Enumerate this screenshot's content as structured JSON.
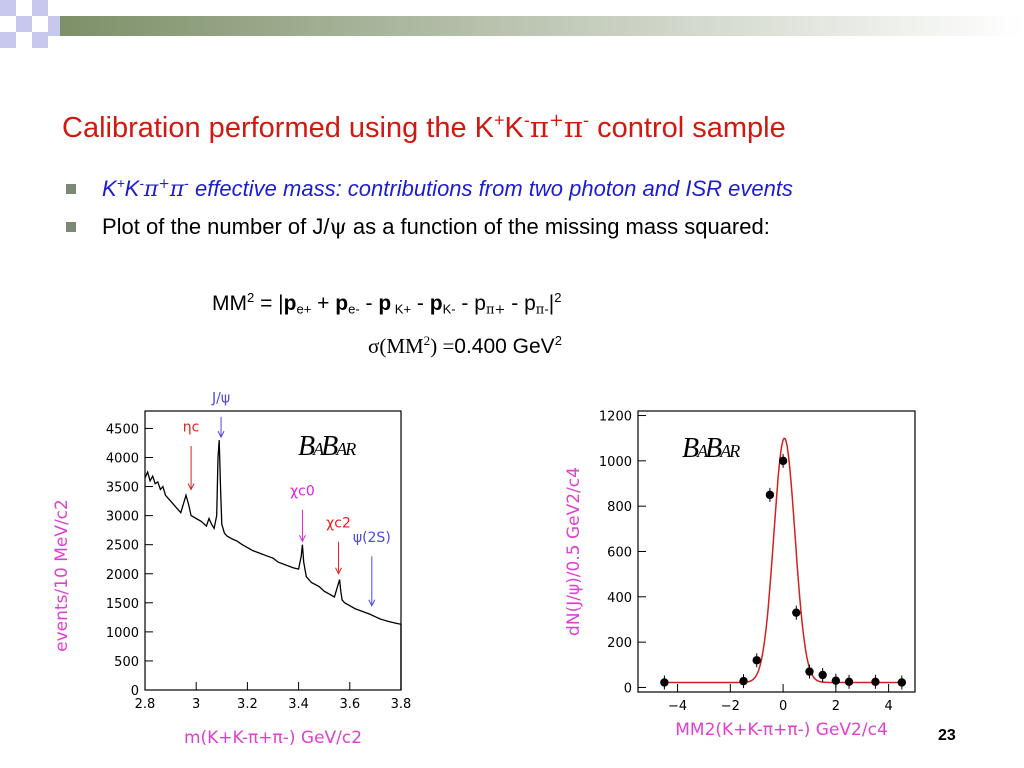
{
  "slide": {
    "title_parts": [
      "Calibration performed using the K",
      "+",
      "K",
      "-",
      "π",
      "+",
      "π",
      "-",
      " control sample"
    ],
    "bullet1": {
      "parts": [
        "K",
        "+",
        "K",
        "-",
        "π",
        "+",
        "π",
        "-"
      ],
      "text": " effective mass: contributions from two photon and ISR events"
    },
    "bullet2": {
      "pre": "Plot of the number of J/",
      "psi": "ψ",
      "post": " as a function of the missing mass squared:"
    },
    "formula1": {
      "lead": "MM",
      "lead_sup": "2",
      "eq": " = |",
      "t1": "p",
      "t1_sub": "e+",
      "op1": " + ",
      "t2": "p",
      "t2_sub": "e-",
      "op2": " - ",
      "t3": "p",
      "t3_sub": " K+",
      "op3": " - ",
      "t4": "p",
      "t4_sub": "K-",
      "op4": " - ",
      "t5": "p",
      "t5_sub": "π+",
      "op5": " - ",
      "t6": "p",
      "t6_sub": "π-",
      "close": "|",
      "close_sup": "2"
    },
    "formula2": {
      "sigma": "σ(MM",
      "sup": "2",
      "paren": ")",
      "eq": " =",
      "value": "0.400 GeV",
      "unit_sup": "2"
    },
    "page_number": "23",
    "colors": {
      "title": "#d0190f",
      "bullet_italic": "#1c1cd0",
      "axis_label": "#e040d0",
      "fit_curve": "#d42020"
    }
  },
  "chart_data": [
    {
      "type": "line",
      "logo": "BABAR",
      "xlabel": "m(K+K-π+π-) GeV/c2",
      "ylabel": "events/10 MeV/c2",
      "xlim": [
        2.8,
        3.8
      ],
      "ylim": [
        0,
        4800
      ],
      "xticks": [
        "2.8",
        "3",
        "3.2",
        "3.4",
        "3.6",
        "3.8"
      ],
      "yticks": [
        "0",
        "500",
        "1000",
        "1500",
        "2000",
        "2500",
        "3000",
        "3500",
        "4000",
        "4500"
      ],
      "x": [
        2.8,
        2.81,
        2.82,
        2.83,
        2.84,
        2.85,
        2.86,
        2.87,
        2.88,
        2.9,
        2.92,
        2.94,
        2.95,
        2.96,
        2.97,
        2.98,
        3.0,
        3.02,
        3.04,
        3.05,
        3.06,
        3.07,
        3.08,
        3.085,
        3.09,
        3.095,
        3.1,
        3.11,
        3.12,
        3.14,
        3.16,
        3.18,
        3.2,
        3.22,
        3.25,
        3.28,
        3.3,
        3.32,
        3.35,
        3.38,
        3.4,
        3.41,
        3.415,
        3.42,
        3.43,
        3.45,
        3.48,
        3.5,
        3.52,
        3.54,
        3.55,
        3.56,
        3.565,
        3.57,
        3.58,
        3.6,
        3.62,
        3.65,
        3.68,
        3.7,
        3.72,
        3.75,
        3.78,
        3.8
      ],
      "y": [
        3650,
        3750,
        3600,
        3680,
        3550,
        3580,
        3450,
        3500,
        3350,
        3250,
        3150,
        3050,
        3200,
        3350,
        3200,
        3000,
        2950,
        2900,
        2820,
        2950,
        2850,
        2780,
        3000,
        4000,
        4300,
        3500,
        2850,
        2700,
        2650,
        2600,
        2560,
        2500,
        2450,
        2400,
        2350,
        2300,
        2270,
        2200,
        2150,
        2100,
        2080,
        2300,
        2500,
        2200,
        1950,
        1850,
        1780,
        1700,
        1650,
        1600,
        1750,
        1900,
        1700,
        1550,
        1500,
        1450,
        1400,
        1350,
        1300,
        1260,
        1220,
        1180,
        1150,
        1130
      ],
      "annotations": [
        {
          "text": "J/ψ",
          "x": 3.097,
          "color": "#4a4ae0",
          "label_y": 4950,
          "arrow_from": 4700,
          "arrow_to": 4350
        },
        {
          "text": "ηc",
          "x": 2.98,
          "color": "#e02020",
          "label_y": 4450,
          "arrow_from": 4200,
          "arrow_to": 3450
        },
        {
          "text": "χc0",
          "x": 3.415,
          "color": "#e020e0",
          "label_y": 3350,
          "arrow_from": 3100,
          "arrow_to": 2560
        },
        {
          "text": "χc2",
          "x": 3.556,
          "color": "#e02020",
          "label_y": 2800,
          "arrow_from": 2550,
          "arrow_to": 2000
        },
        {
          "text": "ψ(2S)",
          "x": 3.686,
          "color": "#4a4ae0",
          "label_y": 2550,
          "arrow_from": 2300,
          "arrow_to": 1450
        }
      ]
    },
    {
      "type": "scatter",
      "logo": "BABAR",
      "xlabel": "MM2(K+K-π+π-) GeV2/c4",
      "ylabel": "dN(J/ψ)/0.5 GeV2/c4",
      "xlim": [
        -5.5,
        5
      ],
      "ylim": [
        -20,
        1220
      ],
      "xticks": [
        "-4",
        "-2",
        "0",
        "2",
        "4"
      ],
      "yticks": [
        "0",
        "200",
        "400",
        "600",
        "800",
        "1000",
        "1200"
      ],
      "series": [
        {
          "x": [
            -4.5,
            -1.5,
            -1.0,
            -0.5,
            0,
            0.5,
            1.0,
            1.5,
            2.0,
            2.5,
            3.5,
            4.5
          ],
          "y": [
            22,
            28,
            120,
            850,
            1000,
            330,
            70,
            55,
            30,
            25,
            25,
            22
          ]
        }
      ],
      "fit": {
        "amplitude": 1100,
        "mean": 0.05,
        "sigma": 0.4,
        "baseline": 22
      }
    }
  ]
}
